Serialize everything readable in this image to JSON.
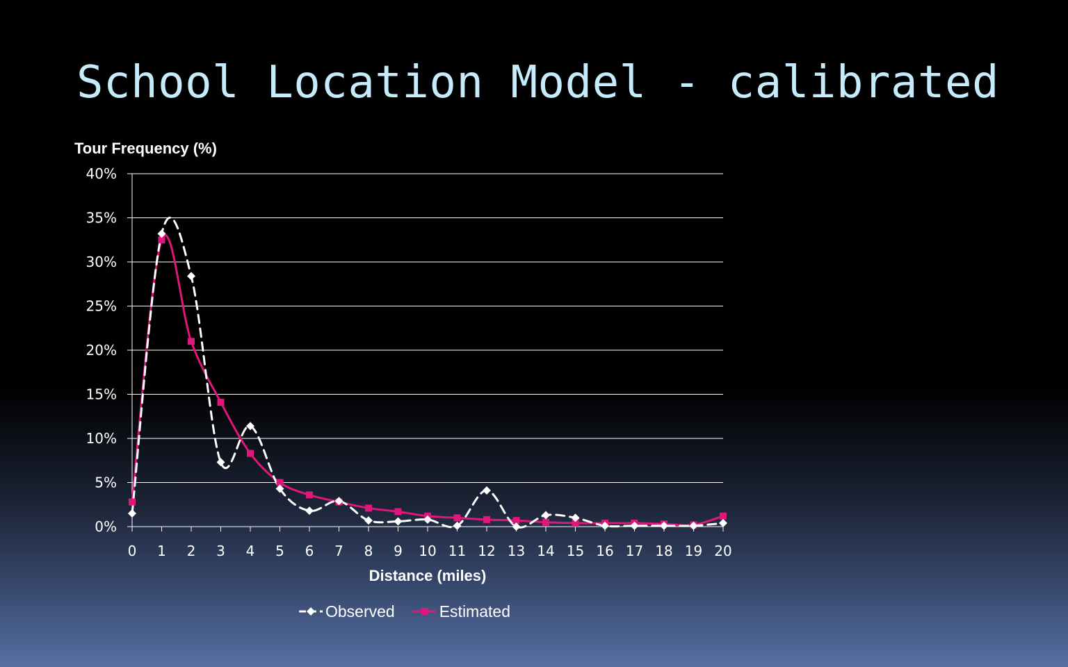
{
  "slide": {
    "title": "School Location Model - calibrated"
  },
  "chart_data": {
    "type": "line",
    "ylabel": "Tour Frequency (%)",
    "xlabel": "Distance (miles)",
    "x": [
      0,
      1,
      2,
      3,
      4,
      5,
      6,
      7,
      8,
      9,
      10,
      11,
      12,
      13,
      14,
      15,
      16,
      17,
      18,
      19,
      20
    ],
    "x_tick_labels": [
      "0",
      "1",
      "2",
      "3",
      "4",
      "5",
      "6",
      "7",
      "8",
      "9",
      "10",
      "11",
      "12",
      "13",
      "14",
      "15",
      "16",
      "17",
      "18",
      "19",
      "20"
    ],
    "y_tick_labels": [
      "0%",
      "5%",
      "10%",
      "15%",
      "20%",
      "25%",
      "30%",
      "35%",
      "40%"
    ],
    "ylim": [
      0,
      40
    ],
    "y_step": 5,
    "grid": true,
    "legend_position": "bottom",
    "series": [
      {
        "name": "Observed",
        "color": "#ffffff",
        "dash": "dashed",
        "marker": "diamond",
        "values": [
          1.5,
          33.2,
          28.4,
          7.3,
          11.4,
          4.3,
          1.8,
          2.9,
          0.7,
          0.6,
          0.8,
          0.1,
          4.1,
          0.0,
          1.3,
          1.0,
          0.1,
          0.1,
          0.1,
          0.1,
          0.4
        ]
      },
      {
        "name": "Estimated",
        "color": "#e0177a",
        "dash": "solid",
        "marker": "square",
        "values": [
          2.8,
          32.5,
          21.0,
          14.1,
          8.3,
          5.0,
          3.6,
          2.8,
          2.1,
          1.7,
          1.2,
          1.0,
          0.8,
          0.7,
          0.5,
          0.4,
          0.4,
          0.4,
          0.3,
          0.2,
          1.2
        ]
      }
    ]
  }
}
